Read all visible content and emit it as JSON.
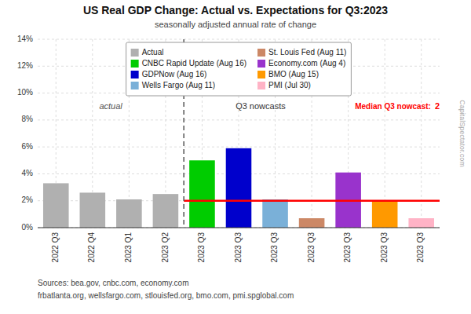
{
  "chart_data": {
    "type": "bar",
    "title": "US Real GDP Change: Actual vs. Expectations for Q3:2023",
    "subtitle": "seasonally adjusted annual rate of change",
    "categories": [
      "2022 Q3",
      "2022 Q4",
      "2023 Q1",
      "2023 Q2",
      "2023 Q3",
      "2023 Q3",
      "2023 Q3",
      "2023 Q3",
      "2023 Q3",
      "2023 Q3",
      "2023 Q3"
    ],
    "series": [
      {
        "name": "Actual",
        "color": "#b0b0b0",
        "values": [
          3.3,
          2.6,
          2.1,
          2.5,
          null,
          null,
          null,
          null,
          null,
          null,
          null
        ]
      },
      {
        "name": "CNBC Rapid Update (Aug 16)",
        "color": "#00cc00",
        "values": [
          null,
          null,
          null,
          null,
          5.0,
          null,
          null,
          null,
          null,
          null,
          null
        ]
      },
      {
        "name": "GDPNow (Aug 16)",
        "color": "#0000cc",
        "values": [
          null,
          null,
          null,
          null,
          null,
          5.9,
          null,
          null,
          null,
          null,
          null
        ]
      },
      {
        "name": "Wells Fargo (Aug 11)",
        "color": "#7ab0d8",
        "values": [
          null,
          null,
          null,
          null,
          null,
          null,
          2.1,
          null,
          null,
          null,
          null
        ]
      },
      {
        "name": "St. Louis Fed (Aug 11)",
        "color": "#cc8866",
        "values": [
          null,
          null,
          null,
          null,
          null,
          null,
          null,
          0.7,
          null,
          null,
          null
        ]
      },
      {
        "name": "Economy.com (Aug 4)",
        "color": "#9933cc",
        "values": [
          null,
          null,
          null,
          null,
          null,
          null,
          null,
          null,
          4.1,
          null,
          null
        ]
      },
      {
        "name": "BMO (Aug 15)",
        "color": "#ff9900",
        "values": [
          null,
          null,
          null,
          null,
          null,
          null,
          null,
          null,
          null,
          2.0,
          null
        ]
      },
      {
        "name": "PMI (Jul 30)",
        "color": "#ffb3c6",
        "values": [
          null,
          null,
          null,
          null,
          null,
          null,
          null,
          null,
          null,
          null,
          0.7
        ]
      }
    ],
    "median_line": {
      "value": 2.0,
      "label": "Median Q3 nowcast:",
      "value_label": "2",
      "color": "#ff0000"
    },
    "annotations": [
      "actual",
      "Q3 nowcasts"
    ],
    "ylim": [
      0,
      14
    ],
    "yticks": [
      {
        "value": 0,
        "label": "0%"
      },
      {
        "value": 2,
        "label": "2%"
      },
      {
        "value": 4,
        "label": "4%"
      },
      {
        "value": 6,
        "label": "6%"
      },
      {
        "value": 8,
        "label": "8%"
      },
      {
        "value": 10,
        "label": "10%"
      },
      {
        "value": 12,
        "label": "12%"
      },
      {
        "value": 14,
        "label": "14%"
      }
    ],
    "grid": true,
    "legend": "top",
    "watermark": "CapitalSpectator.com",
    "source": [
      "Sources: bea.gov, cnbc.com, economy.com",
      "frbatlanta.org, wellsfargo.com, stlouisfed.org, bmo.com, pmi.spglobal.com"
    ]
  }
}
